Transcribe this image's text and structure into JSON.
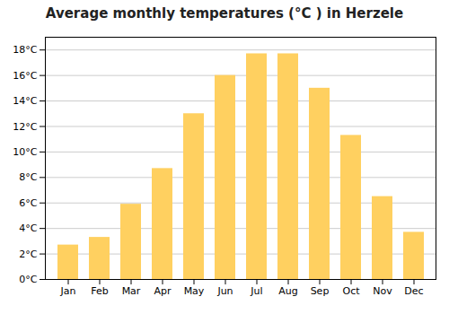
{
  "chart_data": {
    "type": "bar",
    "title": "Average monthly temperatures (°C ) in Herzele",
    "categories": [
      "Jan",
      "Feb",
      "Mar",
      "Apr",
      "May",
      "Jun",
      "Jul",
      "Aug",
      "Sep",
      "Oct",
      "Nov",
      "Dec"
    ],
    "values": [
      2.7,
      3.3,
      5.9,
      8.7,
      13.0,
      16.0,
      17.7,
      17.7,
      15.0,
      11.3,
      6.5,
      3.7
    ],
    "color": "#FFD060",
    "ylim": [
      0,
      19
    ],
    "yticks": [
      {
        "value": 0,
        "label": "0°C"
      },
      {
        "value": 2,
        "label": "2°C"
      },
      {
        "value": 4,
        "label": "4°C"
      },
      {
        "value": 6,
        "label": "6°C"
      },
      {
        "value": 8,
        "label": "8°C"
      },
      {
        "value": 10,
        "label": "10°C"
      },
      {
        "value": 12,
        "label": "12°C"
      },
      {
        "value": 14,
        "label": "14°C"
      },
      {
        "value": 16,
        "label": "16°C"
      },
      {
        "value": 18,
        "label": "18°C"
      }
    ],
    "grid": true
  }
}
